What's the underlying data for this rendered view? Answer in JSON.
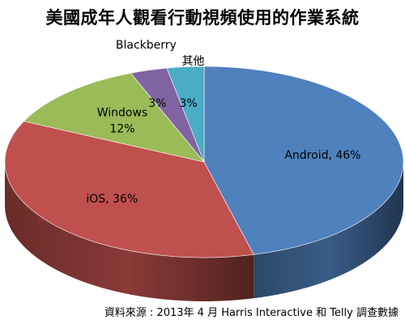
{
  "chart_data": {
    "type": "pie",
    "title": "美國成年人觀看行動視頻使用的作業系統",
    "unit": "%",
    "slices": [
      {
        "label": "Android",
        "value": 46,
        "display": "Android, 46%",
        "color": "#4f81bd"
      },
      {
        "label": "iOS",
        "value": 36,
        "display": "iOS, 36%",
        "color": "#c0504d"
      },
      {
        "label": "Windows",
        "value": 12,
        "display": "12%",
        "color": "#9bbb59"
      },
      {
        "label": "Blackberry",
        "value": 3,
        "display": "3%",
        "color": "#8064a2"
      },
      {
        "label": "其他",
        "value": 3,
        "display": "3%",
        "color": "#4bacc6"
      }
    ]
  },
  "source": "資料來源 : 2013年 4 月 Harris Interactive 和 Telly 調查數據"
}
